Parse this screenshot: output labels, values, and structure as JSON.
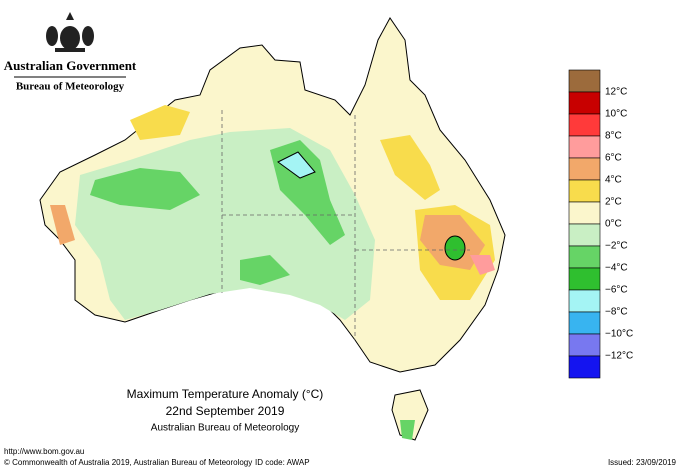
{
  "header": {
    "government": "Australian Government",
    "bureau": "Bureau of Meteorology"
  },
  "map": {
    "title": "Maximum Temperature Anomaly (°C)",
    "date": "22nd September 2019",
    "source": "Australian Bureau of Meteorology"
  },
  "legend": {
    "colors": [
      "#9c6b3c",
      "#c80000",
      "#ff3a3a",
      "#ff9c9c",
      "#f2a86a",
      "#f8dc4c",
      "#fbf6cc",
      "#c9efc4",
      "#66d466",
      "#2fbf2f",
      "#a4f4f4",
      "#38b4f0",
      "#7878f0",
      "#1414f0"
    ],
    "labels": [
      "12°C",
      "10°C",
      "8°C",
      "6°C",
      "4°C",
      "2°C",
      "0°C",
      "−2°C",
      "−4°C",
      "−6°C",
      "−8°C",
      "−10°C",
      "−12°C"
    ]
  },
  "footer": {
    "url": "http://www.bom.gov.au",
    "copyright": "© Commonwealth of Australia 2019, Australian Bureau of Meteorology",
    "id_code": "ID code: AWAP",
    "issued": "Issued: 23/09/2019"
  }
}
